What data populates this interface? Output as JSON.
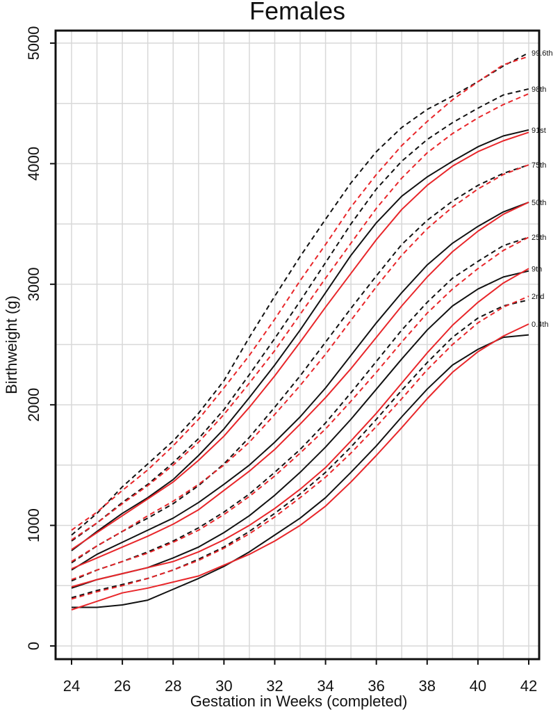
{
  "chart_data": {
    "type": "line",
    "title": "Females",
    "xlabel": "Gestation in Weeks (completed)",
    "ylabel": "Birthweight (g)",
    "xlim": [
      24,
      42
    ],
    "ylim": [
      0,
      5000
    ],
    "x_ticks": [
      24,
      26,
      28,
      30,
      32,
      34,
      36,
      38,
      40,
      42
    ],
    "y_ticks": [
      0,
      1000,
      2000,
      3000,
      4000,
      5000
    ],
    "grid": true,
    "x": [
      24,
      25,
      26,
      27,
      28,
      29,
      30,
      31,
      32,
      33,
      34,
      35,
      36,
      37,
      38,
      39,
      40,
      41,
      42
    ],
    "percentile_labels": [
      "99.6th",
      "98th",
      "91st",
      "75th",
      "50th",
      "25th",
      "9th",
      "2nd",
      "0.4th"
    ],
    "colors": {
      "black": "#111111",
      "red": "#e8262a"
    },
    "series": [
      {
        "name": "99.6th",
        "color": "black",
        "dash": true,
        "values": [
          920,
          1100,
          1320,
          1510,
          1700,
          1930,
          2200,
          2560,
          2900,
          3230,
          3540,
          3840,
          4100,
          4300,
          4450,
          4560,
          4680,
          4810,
          4920
        ]
      },
      {
        "name": "99.6th",
        "color": "red",
        "dash": true,
        "values": [
          960,
          1110,
          1290,
          1460,
          1660,
          1880,
          2140,
          2410,
          2710,
          3030,
          3330,
          3640,
          3910,
          4150,
          4350,
          4530,
          4680,
          4820,
          4890
        ]
      },
      {
        "name": "98th",
        "color": "black",
        "dash": true,
        "values": [
          870,
          1020,
          1190,
          1340,
          1520,
          1720,
          1960,
          2250,
          2550,
          2860,
          3180,
          3500,
          3790,
          4020,
          4200,
          4340,
          4460,
          4570,
          4620
        ]
      },
      {
        "name": "98th",
        "color": "red",
        "dash": true,
        "values": [
          880,
          1020,
          1180,
          1330,
          1500,
          1690,
          1920,
          2180,
          2450,
          2750,
          3050,
          3340,
          3630,
          3880,
          4090,
          4250,
          4380,
          4490,
          4580
        ]
      },
      {
        "name": "91st",
        "color": "black",
        "dash": false,
        "values": [
          790,
          950,
          1100,
          1230,
          1380,
          1580,
          1800,
          2060,
          2330,
          2620,
          2930,
          3240,
          3510,
          3730,
          3890,
          4020,
          4140,
          4230,
          4280
        ]
      },
      {
        "name": "91st",
        "color": "red",
        "dash": false,
        "values": [
          800,
          940,
          1080,
          1220,
          1360,
          1540,
          1740,
          1980,
          2240,
          2520,
          2810,
          3090,
          3370,
          3620,
          3820,
          3980,
          4100,
          4190,
          4260
        ]
      },
      {
        "name": "75th",
        "color": "black",
        "dash": true,
        "values": [
          690,
          830,
          950,
          1060,
          1180,
          1330,
          1510,
          1730,
          1980,
          2240,
          2520,
          2800,
          3070,
          3330,
          3530,
          3690,
          3820,
          3920,
          3990
        ]
      },
      {
        "name": "75th",
        "color": "red",
        "dash": true,
        "values": [
          700,
          830,
          950,
          1080,
          1200,
          1340,
          1500,
          1690,
          1920,
          2160,
          2420,
          2700,
          2980,
          3240,
          3460,
          3640,
          3790,
          3910,
          3990
        ]
      },
      {
        "name": "50th",
        "color": "black",
        "dash": false,
        "values": [
          630,
          760,
          860,
          960,
          1060,
          1190,
          1340,
          1500,
          1690,
          1900,
          2140,
          2410,
          2680,
          2930,
          3160,
          3340,
          3480,
          3600,
          3680
        ]
      },
      {
        "name": "50th",
        "color": "red",
        "dash": false,
        "values": [
          640,
          730,
          820,
          910,
          1010,
          1130,
          1290,
          1450,
          1630,
          1840,
          2060,
          2300,
          2560,
          2820,
          3060,
          3270,
          3440,
          3580,
          3680
        ]
      },
      {
        "name": "25th",
        "color": "black",
        "dash": true,
        "values": [
          540,
          630,
          700,
          780,
          870,
          980,
          1110,
          1260,
          1440,
          1630,
          1850,
          2100,
          2360,
          2620,
          2850,
          3050,
          3190,
          3320,
          3390
        ]
      },
      {
        "name": "25th",
        "color": "red",
        "dash": true,
        "values": [
          550,
          630,
          700,
          770,
          860,
          960,
          1090,
          1240,
          1410,
          1600,
          1800,
          2030,
          2270,
          2520,
          2760,
          2960,
          3130,
          3280,
          3390
        ]
      },
      {
        "name": "9th",
        "color": "black",
        "dash": false,
        "values": [
          480,
          550,
          600,
          650,
          730,
          820,
          940,
          1080,
          1250,
          1440,
          1650,
          1880,
          2130,
          2380,
          2620,
          2820,
          2960,
          3060,
          3110
        ]
      },
      {
        "name": "9th",
        "color": "red",
        "dash": false,
        "values": [
          490,
          550,
          600,
          650,
          700,
          780,
          880,
          1000,
          1140,
          1300,
          1480,
          1700,
          1930,
          2180,
          2430,
          2660,
          2850,
          3010,
          3130
        ]
      },
      {
        "name": "2nd",
        "color": "black",
        "dash": true,
        "values": [
          400,
          460,
          510,
          560,
          630,
          720,
          820,
          950,
          1100,
          1260,
          1440,
          1650,
          1880,
          2120,
          2350,
          2560,
          2720,
          2820,
          2870
        ]
      },
      {
        "name": "2nd",
        "color": "red",
        "dash": true,
        "values": [
          390,
          450,
          500,
          560,
          630,
          710,
          810,
          930,
          1070,
          1230,
          1400,
          1600,
          1820,
          2050,
          2290,
          2500,
          2680,
          2810,
          2900
        ]
      },
      {
        "name": "0.4th",
        "color": "black",
        "dash": false,
        "values": [
          320,
          320,
          340,
          380,
          470,
          560,
          660,
          780,
          920,
          1060,
          1230,
          1440,
          1660,
          1900,
          2130,
          2330,
          2460,
          2560,
          2580
        ]
      },
      {
        "name": "0.4th",
        "color": "red",
        "dash": false,
        "values": [
          300,
          370,
          440,
          480,
          530,
          580,
          670,
          760,
          870,
          1000,
          1160,
          1360,
          1580,
          1810,
          2050,
          2270,
          2440,
          2570,
          2670
        ]
      }
    ]
  }
}
